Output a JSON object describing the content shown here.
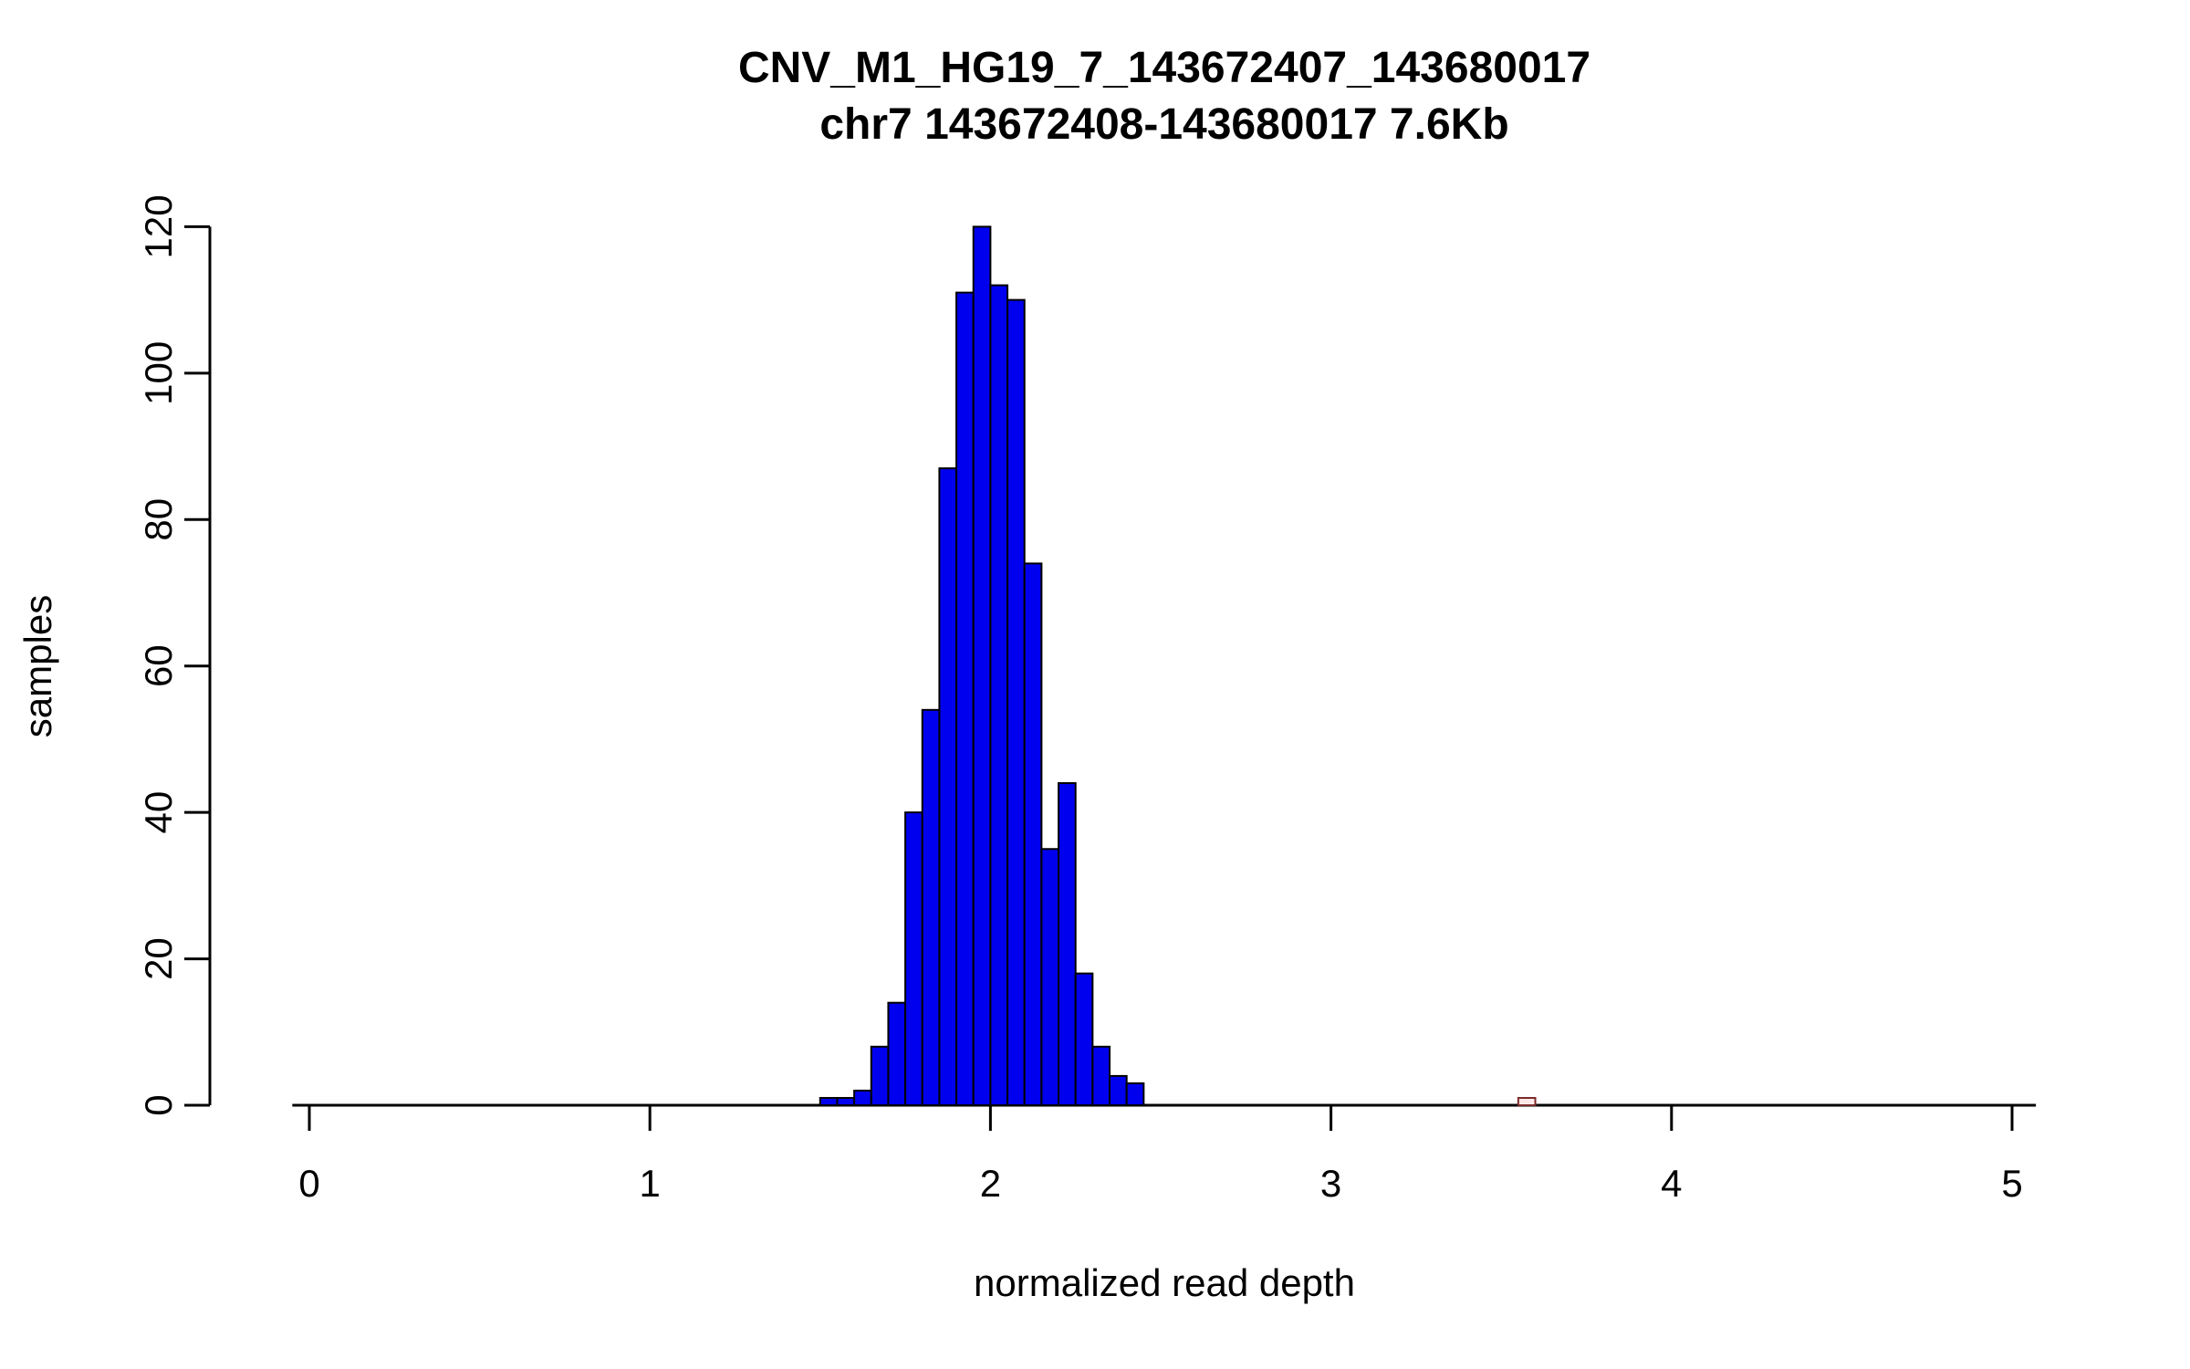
{
  "page": {
    "background": "#FFFFFF"
  },
  "chart_data": {
    "type": "histogram",
    "title": "CNV_M1_HG19_7_143672407_143680017",
    "subtitle": "chr7 143672408-143680017 7.6Kb",
    "xlabel": "normalized read depth",
    "ylabel": "samples",
    "xlim": [
      0,
      5
    ],
    "ylim": [
      0,
      120
    ],
    "x_ticks": [
      0,
      1,
      2,
      3,
      4,
      5
    ],
    "y_ticks": [
      0,
      20,
      40,
      60,
      80,
      100,
      120
    ],
    "grid": false,
    "legend": false,
    "bin_width": 0.05,
    "bar_color": "#0000EE",
    "bar_stroke": "#000000",
    "axis_color": "#000000",
    "bars": [
      {
        "x": 1.5,
        "count": 1
      },
      {
        "x": 1.55,
        "count": 1
      },
      {
        "x": 1.6,
        "count": 2
      },
      {
        "x": 1.65,
        "count": 8
      },
      {
        "x": 1.7,
        "count": 14
      },
      {
        "x": 1.75,
        "count": 40
      },
      {
        "x": 1.8,
        "count": 54
      },
      {
        "x": 1.85,
        "count": 87
      },
      {
        "x": 1.9,
        "count": 111
      },
      {
        "x": 1.95,
        "count": 120
      },
      {
        "x": 2.0,
        "count": 112
      },
      {
        "x": 2.05,
        "count": 110
      },
      {
        "x": 2.1,
        "count": 74
      },
      {
        "x": 2.15,
        "count": 35
      },
      {
        "x": 2.2,
        "count": 44
      },
      {
        "x": 2.25,
        "count": 18
      },
      {
        "x": 2.3,
        "count": 8
      },
      {
        "x": 2.35,
        "count": 4
      },
      {
        "x": 2.4,
        "count": 3
      },
      {
        "x": 3.55,
        "count": 1,
        "fill": "#FFE8E8",
        "stroke": "#7A2A2A"
      }
    ]
  }
}
